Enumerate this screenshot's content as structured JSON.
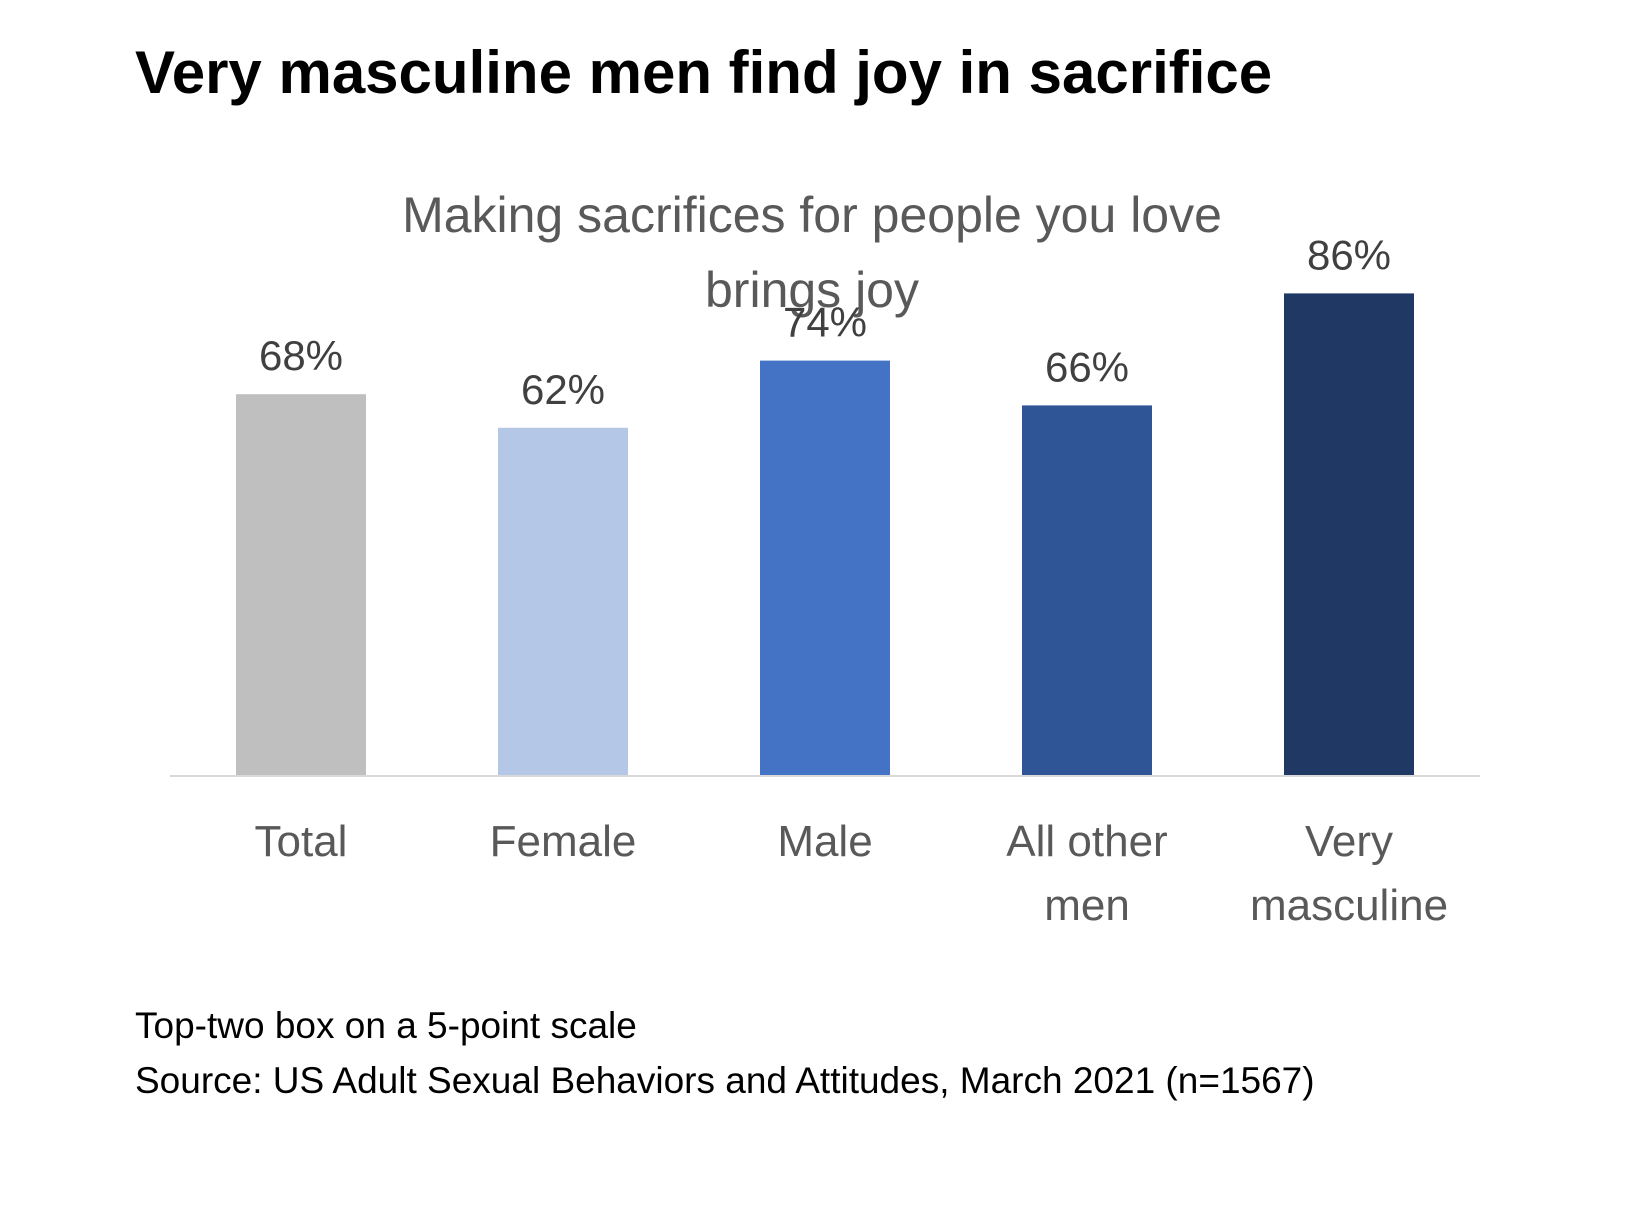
{
  "slide": {
    "title": "Very masculine men find joy in sacrifice",
    "footnote": "Top-two box on a 5-point scale",
    "source": "Source: US Adult Sexual Behaviors and Attitudes, March 2021 (n=1567)"
  },
  "chart_data": {
    "type": "bar",
    "title_lines": [
      "Making sacrifices for people you love",
      "brings joy"
    ],
    "categories": [
      [
        "Total"
      ],
      [
        "Female"
      ],
      [
        "Male"
      ],
      [
        "All other",
        "men"
      ],
      [
        "Very",
        "masculine"
      ]
    ],
    "values": [
      68,
      62,
      74,
      66,
      86
    ],
    "value_labels": [
      "68%",
      "62%",
      "74%",
      "66%",
      "86%"
    ],
    "colors": [
      "#BFBFBF",
      "#B4C7E7",
      "#4472C4",
      "#2F5597",
      "#203864"
    ],
    "ylim": [
      0,
      100
    ],
    "grid": false,
    "xlabel": "",
    "ylabel": "",
    "legend": "none"
  }
}
